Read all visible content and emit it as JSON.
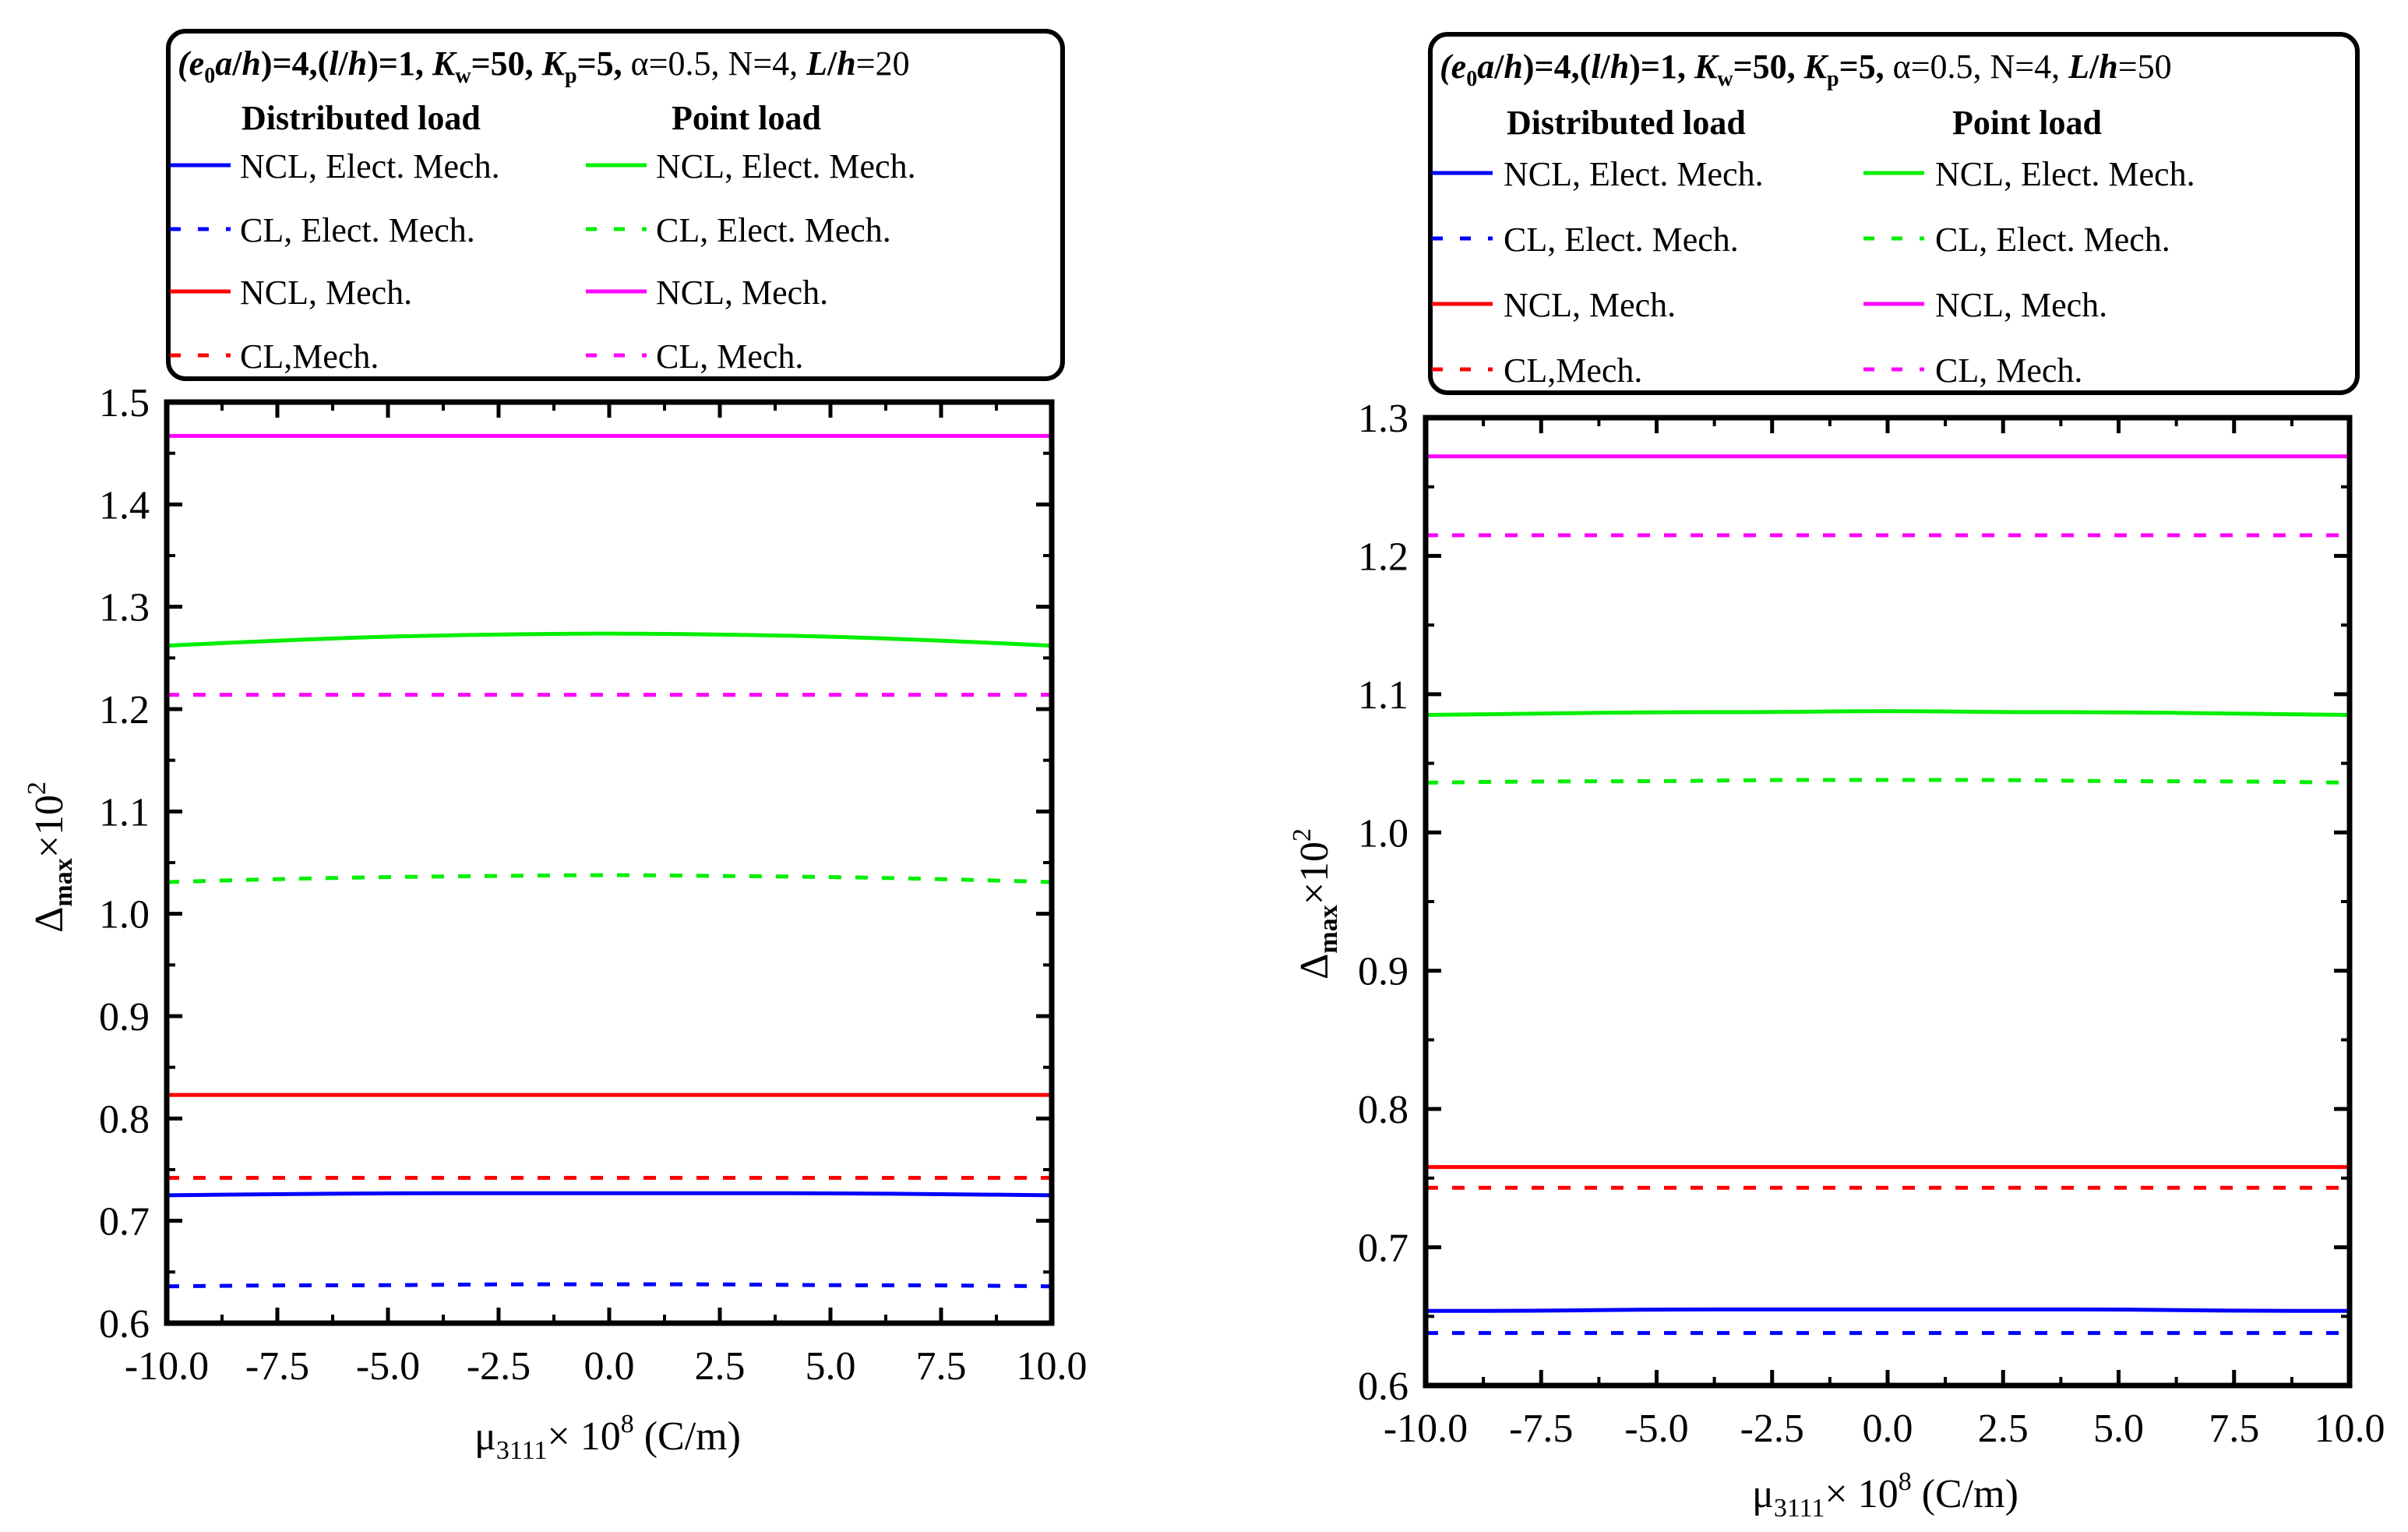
{
  "chart_data": [
    {
      "type": "line",
      "legend": {
        "title": {
          "lead": "(e",
          "sub0": "0",
          "a": "a",
          "slash": "/",
          "h": "h",
          "mid": ")=4,(",
          "l": "l",
          "mid2": ")=1, ",
          "K": "K",
          "w": "w",
          "kweq": "=50, ",
          "p": "p",
          "kpeq": "=5, ",
          "rest": "α=0.5, N=4, ",
          "L": "L",
          "lh": "/",
          "h2": "h",
          "lhval": "=20"
        },
        "col1_header": "Distributed load",
        "col2_header": "Point load",
        "col1": [
          "NCL, Elect. Mech.",
          "CL, Elect. Mech.",
          "NCL, Mech.",
          "CL,Mech."
        ],
        "col2": [
          "NCL, Elect. Mech.",
          "CL, Elect. Mech.",
          "NCL, Mech.",
          "CL, Mech."
        ]
      },
      "xlabel": {
        "mu": "μ",
        "sub": "3111",
        "times": "× 10",
        "sup": "8",
        "unit": " (C/m)"
      },
      "ylabel": {
        "delta": "Δ",
        "sub": "max",
        "times": "×10",
        "sup": "2"
      },
      "xlim": [
        -10,
        10
      ],
      "ylim": [
        0.6,
        1.5
      ],
      "xticks": [
        "-10.0",
        "-7.5",
        "-5.0",
        "-2.5",
        "0.0",
        "2.5",
        "5.0",
        "7.5",
        "10.0"
      ],
      "yticks": [
        "0.6",
        "0.7",
        "0.8",
        "0.9",
        "1.0",
        "1.1",
        "1.2",
        "1.3",
        "1.4",
        "1.5"
      ],
      "x": [
        -10,
        -7.5,
        -5,
        -2.5,
        0,
        2.5,
        5,
        7.5,
        10
      ],
      "series": [
        {
          "name": "Point load NCL, Mech.",
          "color": "#ff00ff",
          "dash": false,
          "values": [
            1.467,
            1.467,
            1.467,
            1.467,
            1.467,
            1.467,
            1.467,
            1.467,
            1.467
          ]
        },
        {
          "name": "Point load NCL, Elect. Mech.",
          "color": "#00ee00",
          "dash": false,
          "values": [
            1.262,
            1.267,
            1.271,
            1.273,
            1.274,
            1.273,
            1.271,
            1.267,
            1.262
          ]
        },
        {
          "name": "Point load CL, Mech.",
          "color": "#ff00ff",
          "dash": true,
          "values": [
            1.214,
            1.214,
            1.214,
            1.214,
            1.214,
            1.214,
            1.214,
            1.214,
            1.214
          ]
        },
        {
          "name": "Point load CL, Elect. Mech.",
          "color": "#00ee00",
          "dash": true,
          "values": [
            1.031,
            1.034,
            1.036,
            1.037,
            1.038,
            1.037,
            1.036,
            1.034,
            1.031
          ]
        },
        {
          "name": "Distributed load NCL, Mech.",
          "color": "#ff0000",
          "dash": false,
          "values": [
            0.823,
            0.823,
            0.823,
            0.823,
            0.823,
            0.823,
            0.823,
            0.823,
            0.823
          ]
        },
        {
          "name": "Distributed load CL,Mech.",
          "color": "#ff0000",
          "dash": true,
          "values": [
            0.742,
            0.742,
            0.742,
            0.742,
            0.742,
            0.742,
            0.742,
            0.742,
            0.742
          ]
        },
        {
          "name": "Distributed load NCL, Elect. Mech.",
          "color": "#0000ff",
          "dash": false,
          "values": [
            0.725,
            0.726,
            0.727,
            0.727,
            0.727,
            0.727,
            0.727,
            0.726,
            0.725
          ]
        },
        {
          "name": "Distributed load CL, Elect. Mech.",
          "color": "#0000ff",
          "dash": true,
          "values": [
            0.636,
            0.637,
            0.637,
            0.638,
            0.638,
            0.638,
            0.637,
            0.637,
            0.636
          ]
        }
      ]
    },
    {
      "type": "line",
      "legend": {
        "title": {
          "lead": "(e",
          "sub0": "0",
          "a": "a",
          "slash": "/",
          "h": "h",
          "mid": ")=4,(",
          "l": "l",
          "mid2": ")=1, ",
          "K": "K",
          "w": "w",
          "kweq": "=50, ",
          "p": "p",
          "kpeq": "=5, ",
          "rest": "α=0.5, N=4, ",
          "L": "L",
          "lh": "/",
          "h2": "h",
          "lhval": "=50"
        },
        "col1_header": "Distributed load",
        "col2_header": "Point load",
        "col1": [
          "NCL, Elect. Mech.",
          "CL, Elect. Mech.",
          "NCL, Mech.",
          "CL,Mech."
        ],
        "col2": [
          "NCL, Elect. Mech.",
          "CL, Elect. Mech.",
          "NCL, Mech.",
          "CL, Mech."
        ]
      },
      "xlabel": {
        "mu": "μ",
        "sub": "3111",
        "times": "× 10",
        "sup": "8",
        "unit": " (C/m)"
      },
      "ylabel": {
        "delta": "Δ",
        "sub": "max",
        "times": "×10",
        "sup": "2"
      },
      "xlim": [
        -10,
        10
      ],
      "ylim": [
        0.6,
        1.3
      ],
      "xticks": [
        "-10.0",
        "-7.5",
        "-5.0",
        "-2.5",
        "0.0",
        "2.5",
        "5.0",
        "7.5",
        "10.0"
      ],
      "yticks": [
        "0.6",
        "0.7",
        "0.8",
        "0.9",
        "1.0",
        "1.1",
        "1.2",
        "1.3"
      ],
      "x": [
        -10,
        -7.5,
        -5,
        -2.5,
        0,
        2.5,
        5,
        7.5,
        10
      ],
      "series": [
        {
          "name": "Point load NCL, Mech.",
          "color": "#ff00ff",
          "dash": false,
          "values": [
            1.272,
            1.272,
            1.272,
            1.272,
            1.272,
            1.272,
            1.272,
            1.272,
            1.272
          ]
        },
        {
          "name": "Point load CL, Mech.",
          "color": "#ff00ff",
          "dash": true,
          "values": [
            1.215,
            1.215,
            1.215,
            1.215,
            1.215,
            1.215,
            1.215,
            1.215,
            1.215
          ]
        },
        {
          "name": "Point load NCL, Elect. Mech.",
          "color": "#00ee00",
          "dash": false,
          "values": [
            1.085,
            1.086,
            1.087,
            1.087,
            1.088,
            1.087,
            1.087,
            1.086,
            1.085
          ]
        },
        {
          "name": "Point load CL, Elect. Mech.",
          "color": "#00ee00",
          "dash": true,
          "values": [
            1.036,
            1.037,
            1.037,
            1.038,
            1.038,
            1.038,
            1.037,
            1.037,
            1.036
          ]
        },
        {
          "name": "Distributed load NCL, Mech.",
          "color": "#ff0000",
          "dash": false,
          "values": [
            0.758,
            0.758,
            0.758,
            0.758,
            0.758,
            0.758,
            0.758,
            0.758,
            0.758
          ]
        },
        {
          "name": "Distributed load CL,Mech.",
          "color": "#ff0000",
          "dash": true,
          "values": [
            0.743,
            0.743,
            0.743,
            0.743,
            0.743,
            0.743,
            0.743,
            0.743,
            0.743
          ]
        },
        {
          "name": "Distributed load NCL, Elect. Mech.",
          "color": "#0000ff",
          "dash": false,
          "values": [
            0.654,
            0.654,
            0.655,
            0.655,
            0.655,
            0.655,
            0.655,
            0.654,
            0.654
          ]
        },
        {
          "name": "Distributed load CL, Elect. Mech.",
          "color": "#0000ff",
          "dash": true,
          "values": [
            0.638,
            0.638,
            0.638,
            0.638,
            0.638,
            0.638,
            0.638,
            0.638,
            0.638
          ]
        }
      ]
    }
  ]
}
